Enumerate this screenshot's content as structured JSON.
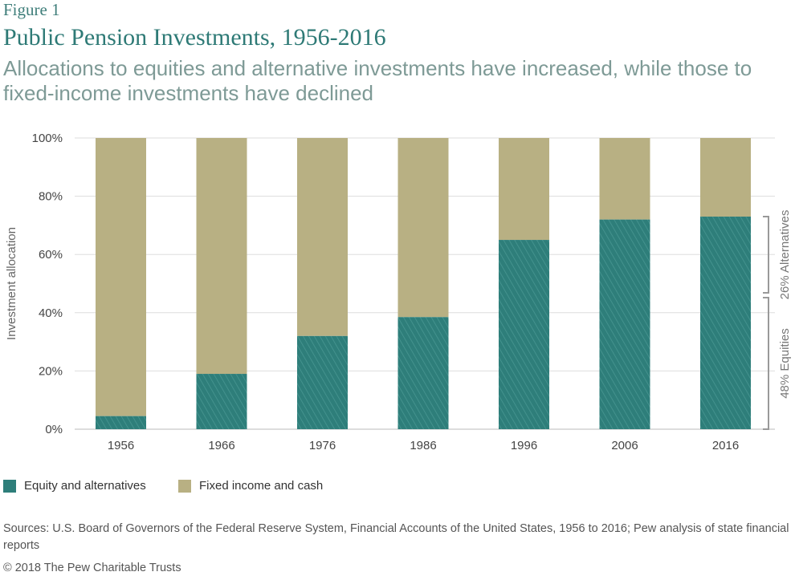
{
  "figure_label": "Figure 1",
  "title": "Public Pension Investments, 1956-2016",
  "subtitle": "Allocations to equities and alternative investments have increased, while those to fixed-income investments have declined",
  "colors": {
    "equity": "#2e7e7a",
    "fixed": "#b8b083",
    "grid": "#dddddd",
    "bracket": "#999999",
    "axis_text": "#444444"
  },
  "legend": {
    "equity_label": "Equity and alternatives",
    "fixed_label": "Fixed income and cash"
  },
  "chart_data": {
    "type": "bar",
    "stacked": true,
    "ylabel": "Investment allocation",
    "ylim": [
      0,
      100
    ],
    "yticks": [
      "0%",
      "20%",
      "40%",
      "60%",
      "80%",
      "100%"
    ],
    "categories": [
      "1956",
      "1966",
      "1976",
      "1986",
      "1996",
      "2006",
      "2016"
    ],
    "series": [
      {
        "name": "Equity and alternatives",
        "values": [
          4.5,
          19,
          32,
          38.5,
          65,
          72,
          73
        ]
      },
      {
        "name": "Fixed income and cash",
        "values": [
          95.5,
          81,
          68,
          61.5,
          35,
          28,
          27
        ]
      }
    ],
    "grid": true,
    "annotations": [
      {
        "label": "26% Alternatives",
        "from": 46,
        "to": 73
      },
      {
        "label": "48% Equities",
        "from": 0,
        "to": 46
      }
    ]
  },
  "sources": "Sources: U.S. Board of Governors of the Federal Reserve System, Financial Accounts of the United States, 1956 to 2016; Pew analysis of state financial reports",
  "copyright": "© 2018 The Pew Charitable Trusts"
}
